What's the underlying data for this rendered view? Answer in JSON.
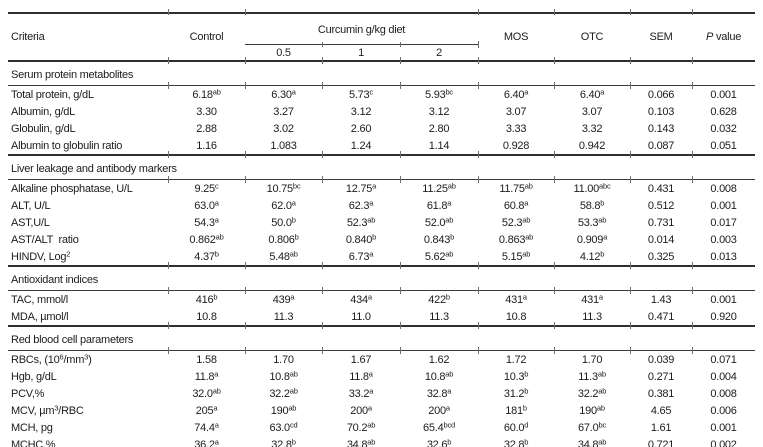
{
  "table": {
    "header": {
      "criteria": "Criteria",
      "control": "Control",
      "curcumin_group": "Curcumin g/kg diet",
      "curcumin_levels": [
        "0.5",
        "1",
        "2"
      ],
      "mos": "MOS",
      "otc": "OTC",
      "sem": "SEM",
      "p_value_italic": "P",
      "p_value_rest": "value"
    },
    "sup_note": "In row strings, text between ^ markers is superscript",
    "sections": [
      {
        "title": "Serum protein metabolites",
        "rows": [
          {
            "criteria": "Total protein, g/dL",
            "values": [
              "6.18^ab",
              "6.30^a",
              "5.73^c",
              "5.93^bc",
              "6.40^a",
              "6.40^a",
              "0.066",
              "0.001"
            ]
          },
          {
            "criteria": "Albumin, g/dL",
            "values": [
              "3.30",
              "3.27",
              "3.12",
              "3.12",
              "3.07",
              "3.07",
              "0.103",
              "0.628"
            ]
          },
          {
            "criteria": "Globulin, g/dL",
            "values": [
              "2.88",
              "3.02",
              "2.60",
              "2.80",
              "3.33",
              "3.32",
              "0.143",
              "0.032"
            ]
          },
          {
            "criteria": "Albumin to globulin ratio",
            "values": [
              "1.16",
              "1.083",
              "1.24",
              "1.14",
              "0.928",
              "0.942",
              "0.087",
              "0.051"
            ]
          }
        ]
      },
      {
        "title": "Liver leakage and antibody markers",
        "rows": [
          {
            "criteria": "Alkaline phosphatase, U/L",
            "values": [
              "9.25^c",
              "10.75^bc",
              "12.75^a",
              "11.25^ab",
              "11.75^ab",
              "11.00^abc",
              "0.431",
              "0.008"
            ]
          },
          {
            "criteria": "ALT, U/L",
            "values": [
              "63.0^a",
              "62.0^a",
              "62.3^a",
              "61.8^a",
              "60.8^a",
              "58.8^b",
              "0.512",
              "0.001"
            ]
          },
          {
            "criteria": "AST,U/L",
            "values": [
              "54.3^a",
              "50.0^b",
              "52.3^ab",
              "52.0^ab",
              "52.3^ab",
              "53.3^ab",
              "0.731",
              "0.017"
            ]
          },
          {
            "criteria": "AST/ALT  ratio",
            "values": [
              "0.862^ab",
              "0.806^b",
              "0.840^b",
              "0.843^b",
              "0.863^ab",
              "0.909^a",
              "0.014",
              "0.003"
            ]
          },
          {
            "criteria": "HINDV, Log^2",
            "values": [
              "4.37^b",
              "5.48^ab",
              "6.73^a",
              "5.62^ab",
              "5.15^ab",
              "4.12^b",
              "0.325",
              "0.013"
            ]
          }
        ]
      },
      {
        "title": "Antioxidant indices",
        "rows": [
          {
            "criteria": "TAC, mmol/l",
            "values": [
              "416^b",
              "439^a",
              "434^a",
              "422^b",
              "431^a",
              "431^a",
              "1.43",
              "0.001"
            ]
          },
          {
            "criteria": "MDA, µmol/l",
            "values": [
              "10.8",
              "11.3",
              "11.0",
              "11.3",
              "10.8",
              "11.3",
              "0.471",
              "0.920"
            ]
          }
        ]
      },
      {
        "title": "Red blood cell parameters",
        "rows": [
          {
            "criteria": "RBCs, (10^6^/mm^3^)",
            "values": [
              "1.58",
              "1.70",
              "1.67",
              "1.62",
              "1.72",
              "1.70",
              "0.039",
              "0.071"
            ]
          },
          {
            "criteria": "Hgb, g/dL",
            "values": [
              "11.8^a",
              "10.8^ab",
              "11.8^a",
              "10.8^ab",
              "10.3^b",
              "11.3^ab",
              "0.271",
              "0.004"
            ]
          },
          {
            "criteria": "PCV,%",
            "values": [
              "32.0^ab",
              "32.2^ab",
              "33.2^a",
              "32.8^a",
              "31.2^b",
              "32.2^ab",
              "0.381",
              "0.008"
            ]
          },
          {
            "criteria": "MCV, µm^3^/RBC",
            "values": [
              "205^a",
              "190^ab",
              "200^a",
              "200^a",
              "181^b",
              "190^ab",
              "4.65",
              "0.006"
            ]
          },
          {
            "criteria": "MCH, pg",
            "values": [
              "74.4^a",
              "63.0^cd",
              "70.2^ab",
              "65.4^bcd",
              "60.0^d",
              "67.0^bc",
              "1.61",
              "0.001"
            ]
          },
          {
            "criteria": "MCHC,%",
            "values": [
              "36.2^a",
              "32.8^b",
              "34.8^ab",
              "32.6^b",
              "32.8^b",
              "34.8^ab",
              "0.721",
              "0.002"
            ]
          }
        ]
      }
    ]
  }
}
